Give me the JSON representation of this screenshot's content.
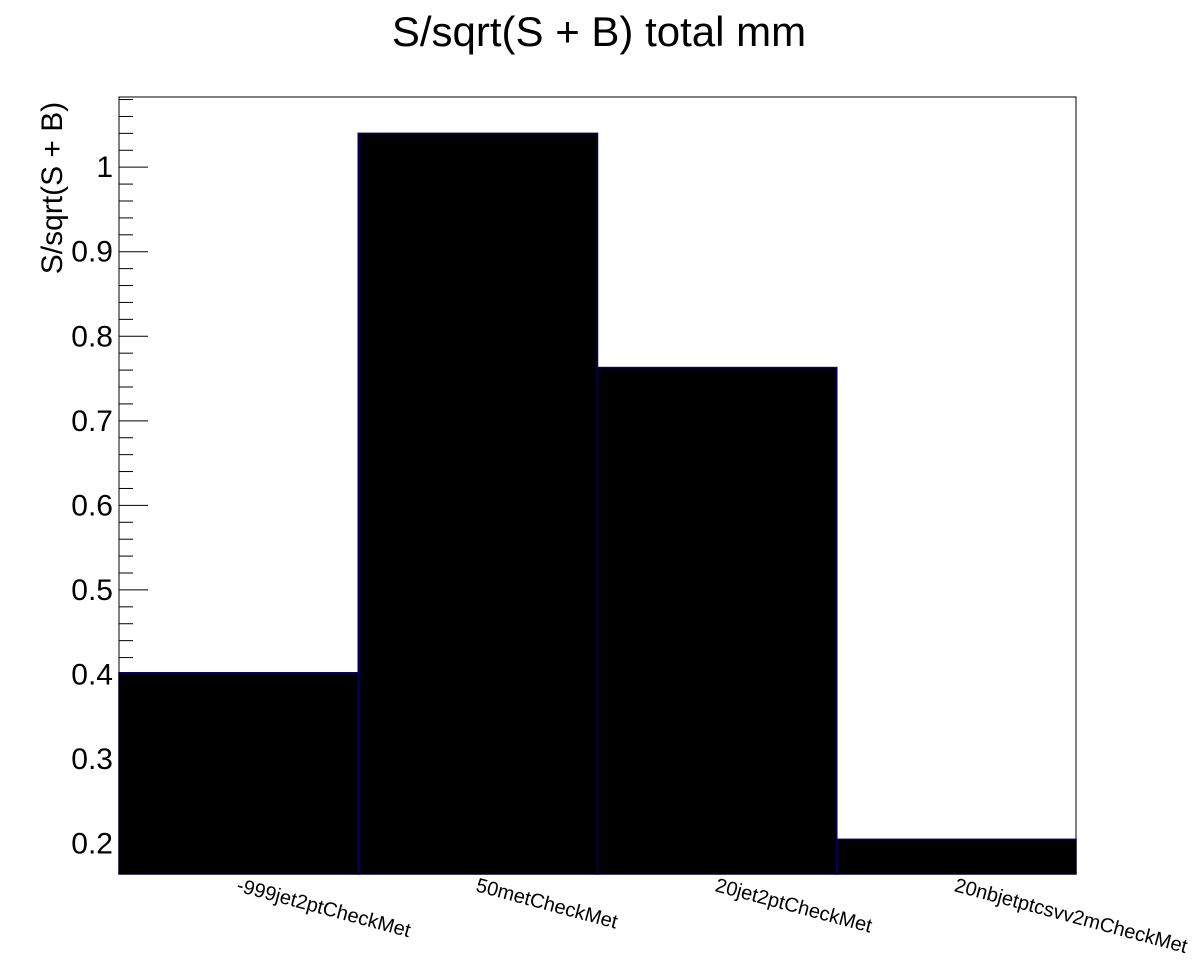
{
  "chart_data": {
    "type": "bar",
    "title": "S/sqrt(S + B) total    mm",
    "xlabel": "",
    "ylabel": "S/sqrt(S + B)",
    "categories": [
      "-999jet2ptCheckMet",
      "50metCheckMet",
      "20jet2ptCheckMet",
      "20nbjetptcsvv2mCheckMet"
    ],
    "values": [
      0.402,
      1.04,
      0.763,
      0.205
    ],
    "ylim": [
      0.164,
      1.083
    ],
    "yticks": [
      {
        "value": 0.2,
        "label": "0.2"
      },
      {
        "value": 0.3,
        "label": "0.3"
      },
      {
        "value": 0.4,
        "label": "0.4"
      },
      {
        "value": 0.5,
        "label": "0.5"
      },
      {
        "value": 0.6,
        "label": "0.6"
      },
      {
        "value": 0.7,
        "label": "0.7"
      },
      {
        "value": 0.8,
        "label": "0.8"
      },
      {
        "value": 0.9,
        "label": "0.9"
      },
      {
        "value": 1.0,
        "label": "1"
      }
    ],
    "grid": false,
    "bar_color": "#000000",
    "bar_edge_color": "#000066"
  }
}
